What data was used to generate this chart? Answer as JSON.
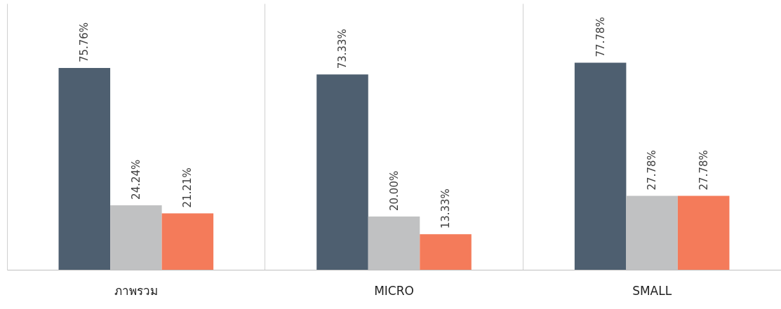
{
  "chart_data": {
    "type": "bar",
    "categories": [
      "ภาพรวม",
      "MICRO",
      "SMALL"
    ],
    "series": [
      {
        "color": "#4e5f70",
        "values": [
          75.76,
          73.33,
          77.78
        ],
        "value_labels": [
          "75.76%",
          "73.33%",
          "77.78%"
        ]
      },
      {
        "color": "#c0c1c2",
        "values": [
          24.24,
          20.0,
          27.78
        ],
        "value_labels": [
          "24.24%",
          "20.00%",
          "27.78%"
        ]
      },
      {
        "color": "#f47b5a",
        "values": [
          21.21,
          13.33,
          27.78
        ],
        "value_labels": [
          "21.21%",
          "13.33%",
          "27.78%"
        ]
      }
    ],
    "ylim": [
      0,
      100
    ],
    "tick_labels": "x",
    "grid": "x",
    "legend": false
  }
}
